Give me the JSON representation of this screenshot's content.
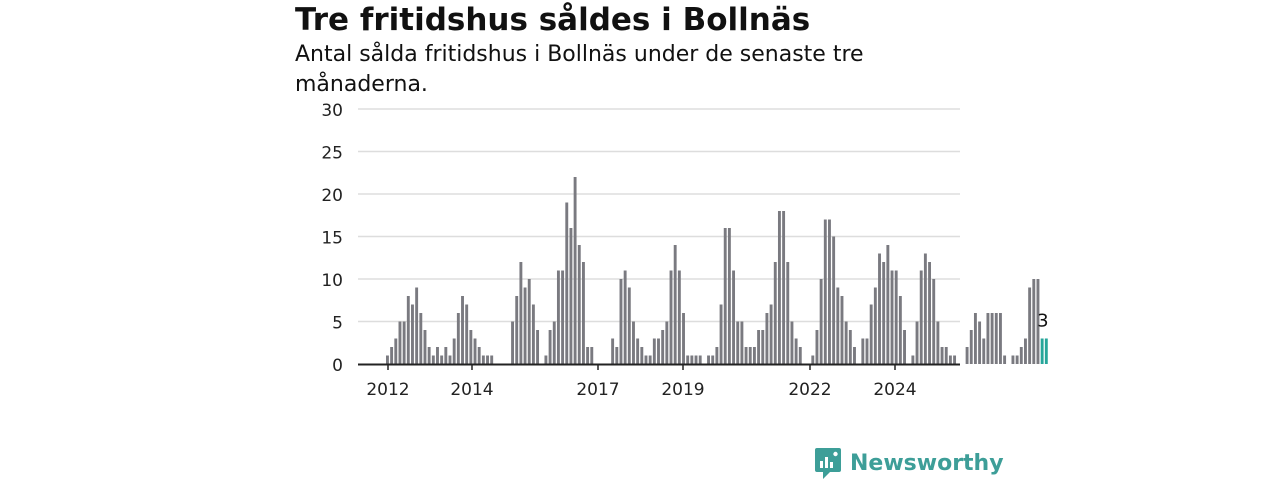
{
  "title": "Tre fritidshus såldes i Bollnäs",
  "subtitle": "Antal sålda fritidshus i Bollnäs under de senaste tre månaderna.",
  "brand": "Newsworthy",
  "colors": {
    "bar": "#7a7a80",
    "highlight": "#26a69a",
    "grid": "#dddddd",
    "axis": "#222222",
    "brand": "#3d9e98"
  },
  "chart_data": {
    "type": "bar",
    "ylim": [
      0,
      30
    ],
    "yticks": [
      0,
      5,
      10,
      15,
      20,
      25,
      30
    ],
    "xtick_labels": [
      "2012",
      "2014",
      "2017",
      "2019",
      "2022",
      "2024"
    ],
    "value_label": "3",
    "values": [
      1,
      2,
      3,
      5,
      5,
      8,
      7,
      9,
      6,
      4,
      2,
      1,
      2,
      1,
      2,
      1,
      3,
      6,
      8,
      7,
      4,
      3,
      2,
      1,
      1,
      1,
      0,
      0,
      0,
      0,
      5,
      8,
      12,
      9,
      10,
      7,
      4,
      0,
      1,
      4,
      5,
      11,
      11,
      19,
      16,
      22,
      14,
      12,
      2,
      2,
      0,
      0,
      0,
      0,
      3,
      2,
      10,
      11,
      9,
      5,
      3,
      2,
      1,
      1,
      3,
      3,
      4,
      5,
      11,
      14,
      11,
      6,
      1,
      1,
      1,
      1,
      0,
      1,
      1,
      2,
      7,
      16,
      16,
      11,
      5,
      5,
      2,
      2,
      2,
      4,
      4,
      6,
      7,
      12,
      18,
      18,
      12,
      5,
      3,
      2,
      0,
      0,
      1,
      4,
      10,
      17,
      17,
      15,
      9,
      8,
      5,
      4,
      2,
      0,
      3,
      3,
      7,
      9,
      13,
      12,
      14,
      11,
      11,
      8,
      4,
      0,
      1,
      5,
      11,
      13,
      12,
      10,
      5,
      2,
      2,
      1,
      1,
      0,
      0,
      2,
      4,
      6,
      5,
      3,
      6,
      6,
      6,
      6,
      1,
      0,
      1,
      1,
      2,
      3,
      9,
      10,
      10,
      3,
      3
    ]
  }
}
